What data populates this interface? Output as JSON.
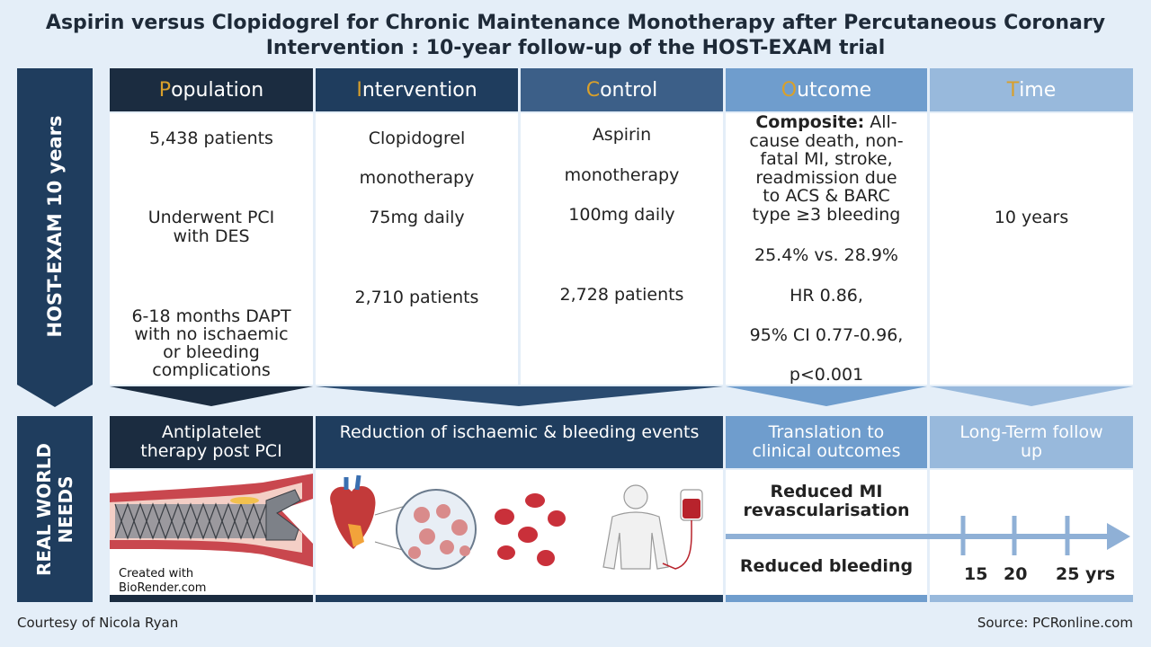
{
  "title": {
    "line1": "Aspirin versus Clopidogrel for Chronic Maintenance Monotherapy after Percutaneous Coronary",
    "line2": "Intervention : 10-year follow-up of the HOST-EXAM trial"
  },
  "side_top": "HOST-EXAM 10 years",
  "side_bottom": {
    "line1": "REAL WORLD",
    "line2": "NEEDS"
  },
  "pico": {
    "population": {
      "first": "P",
      "rest": "opulation"
    },
    "intervention": {
      "first": "I",
      "rest": "ntervention"
    },
    "control": {
      "first": "C",
      "rest": "ontrol"
    },
    "outcome": {
      "first": "O",
      "rest": "utcome"
    },
    "time": {
      "first": "T",
      "rest": "ime"
    }
  },
  "population_cell": {
    "patients": "5,438 patients",
    "pci_1": "Underwent PCI",
    "pci_2": "with DES",
    "dapt_1": "6-18 months DAPT",
    "dapt_2": "with no ischaemic",
    "dapt_3": "or bleeding",
    "dapt_4": "complications"
  },
  "intervention_cell": {
    "drug": "Clopidogrel",
    "mono": "monotherapy",
    "dose": "75mg daily",
    "patients": "2,710 patients"
  },
  "control_cell": {
    "drug": "Aspirin",
    "mono": "monotherapy",
    "dose": "100mg daily",
    "patients": "2,728 patients"
  },
  "outcome_cell": {
    "composite_label": "Composite:",
    "l1": "All-",
    "l2": "cause death, non-",
    "l3": "fatal MI, stroke,",
    "l4": "readmission due",
    "l5": "to ACS  &  BARC",
    "l6": "type ≥3 bleeding",
    "rates": "25.4% vs. 28.9%",
    "hr": "HR 0.86,",
    "ci": "95% CI 0.77-0.96,",
    "p": "p<0.001"
  },
  "time_cell": {
    "value": "10 years"
  },
  "needs": {
    "antiplatelet_1": "Antiplatelet",
    "antiplatelet_2": "therapy post PCI",
    "reduction": "Reduction of ischaemic & bleeding events",
    "translation_1": "Translation to",
    "translation_2": "clinical outcomes",
    "longterm_1": "Long-Term follow",
    "longterm_2": "up"
  },
  "biorender": {
    "line1": "Created with",
    "line2": "BioRender.com"
  },
  "outcomes_list": {
    "mi_1": "Reduced MI",
    "mi_2": "revascularisation",
    "bleeding": "Reduced bleeding"
  },
  "timeline": {
    "t1": "15",
    "t2": "20",
    "t3": "25 yrs"
  },
  "footer": {
    "courtesy": "Courtesy of Nicola Ryan",
    "source": "Source: PCRonline.com"
  },
  "colors": {
    "population": "#1b2c40",
    "intervention": "#1f3d5e",
    "control": "#3c5f88",
    "outcome": "#6f9dcd",
    "time": "#98b9dc",
    "accent": "#d9a02b"
  }
}
